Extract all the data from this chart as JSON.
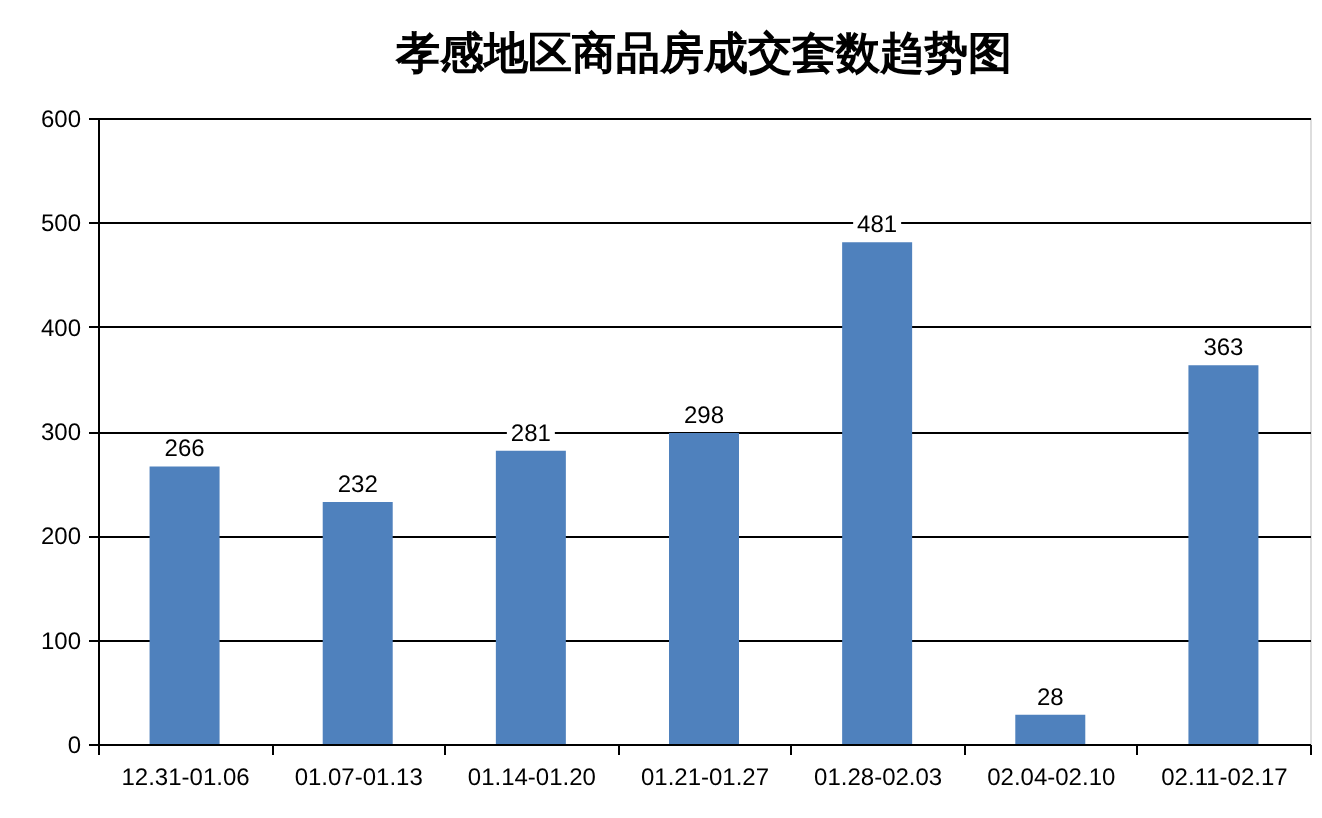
{
  "chart_data": {
    "type": "bar",
    "title": "孝感地区商品房成交套数趋势图",
    "categories": [
      "12.31-01.06",
      "01.07-01.13",
      "01.14-01.20",
      "01.21-01.27",
      "01.28-02.03",
      "02.04-02.10",
      "02.11-02.17"
    ],
    "values": [
      266,
      232,
      281,
      298,
      481,
      28,
      363
    ],
    "color": "#4f81bd",
    "ylim": [
      0,
      600
    ],
    "yticks": [
      0,
      100,
      200,
      300,
      400,
      500,
      600
    ],
    "grid": "y",
    "data_labels": true
  }
}
